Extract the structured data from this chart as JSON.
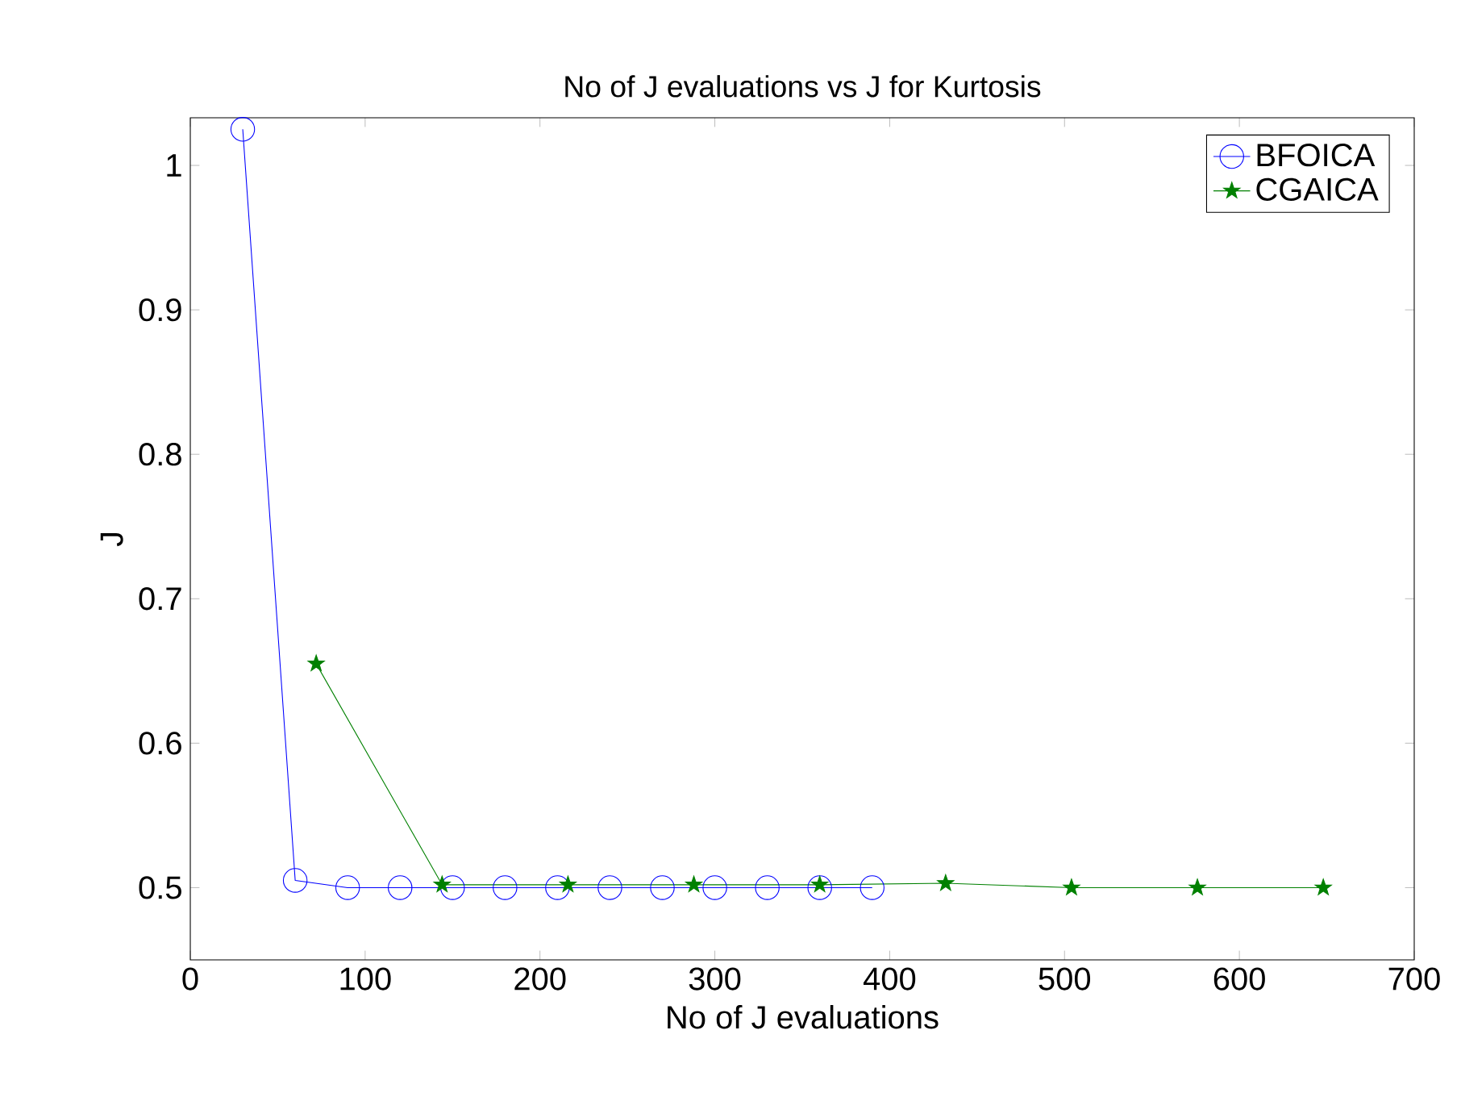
{
  "chart_data": {
    "type": "line",
    "title": "No of J evaluations vs J for Kurtosis",
    "xlabel": "No of J evaluations",
    "ylabel": "J",
    "xlim": [
      0,
      700
    ],
    "xticks": [
      0,
      100,
      200,
      300,
      400,
      500,
      600,
      700
    ],
    "ylim": [
      0.45,
      1.033
    ],
    "yticks": [
      0.5,
      0.6,
      0.7,
      0.8,
      0.9,
      1
    ],
    "grid": false,
    "legend": "top right",
    "series": [
      {
        "name": "BFOICA",
        "color": "#0000ff",
        "marker": "circle",
        "x": [
          30,
          60,
          90,
          120,
          150,
          180,
          210,
          240,
          270,
          300,
          330,
          360,
          390
        ],
        "values": [
          1.025,
          0.505,
          0.5,
          0.5,
          0.5,
          0.5,
          0.5,
          0.5,
          0.5,
          0.5,
          0.5,
          0.5,
          0.5
        ]
      },
      {
        "name": "CGAICA",
        "color": "#008000",
        "marker": "star",
        "x": [
          72,
          144,
          216,
          288,
          360,
          432,
          504,
          576,
          648
        ],
        "values": [
          0.655,
          0.502,
          0.502,
          0.502,
          0.502,
          0.503,
          0.5,
          0.5,
          0.5
        ]
      }
    ]
  }
}
